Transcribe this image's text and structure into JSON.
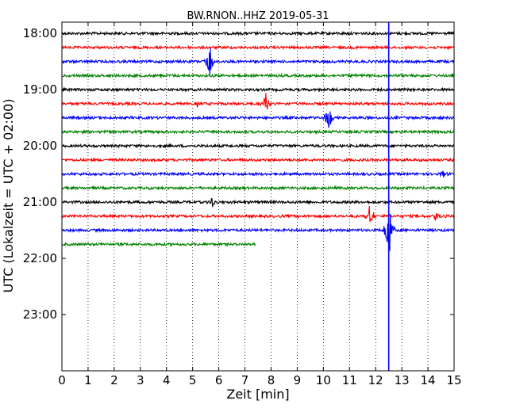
{
  "chart_data": {
    "type": "line",
    "title": "BW.RNON..HHZ 2019-05-31",
    "xlabel": "Zeit  [min]",
    "ylabel": "UTC (Lokalzeit = UTC + 02:00)",
    "xlim": [
      0,
      15
    ],
    "x_ticks": [
      "0",
      "1",
      "2",
      "3",
      "4",
      "5",
      "6",
      "7",
      "8",
      "9",
      "10",
      "11",
      "12",
      "13",
      "14",
      "15"
    ],
    "y_ticks": [
      "18:00",
      "19:00",
      "20:00",
      "21:00",
      "22:00",
      "23:00"
    ],
    "grid": "vertical dotted",
    "trace_interval_min": 15,
    "trace_colors": [
      "#000000",
      "#ff0000",
      "#0000ff",
      "#008000"
    ],
    "traces": [
      {
        "start": "18:00",
        "end_min": 15
      },
      {
        "start": "18:15",
        "end_min": 15
      },
      {
        "start": "18:30",
        "end_min": 15
      },
      {
        "start": "18:45",
        "end_min": 15
      },
      {
        "start": "19:00",
        "end_min": 15
      },
      {
        "start": "19:15",
        "end_min": 15
      },
      {
        "start": "19:30",
        "end_min": 15
      },
      {
        "start": "19:45",
        "end_min": 15
      },
      {
        "start": "20:00",
        "end_min": 15
      },
      {
        "start": "20:15",
        "end_min": 15
      },
      {
        "start": "20:30",
        "end_min": 15
      },
      {
        "start": "20:45",
        "end_min": 15
      },
      {
        "start": "21:00",
        "end_min": 15
      },
      {
        "start": "21:15",
        "end_min": 15
      },
      {
        "start": "21:30",
        "end_min": 15
      },
      {
        "start": "21:45",
        "end_min": 7.4
      }
    ],
    "events": [
      {
        "trace": "18:30",
        "minute": 5.65,
        "amplitude": 1.6
      },
      {
        "trace": "19:15",
        "minute": 7.8,
        "amplitude": 0.9
      },
      {
        "trace": "19:15",
        "minute": 5.2,
        "amplitude": 0.3
      },
      {
        "trace": "19:30",
        "minute": 10.2,
        "amplitude": 1.4
      },
      {
        "trace": "21:00",
        "minute": 5.75,
        "amplitude": 0.45
      },
      {
        "trace": "21:15",
        "minute": 11.8,
        "amplitude": 1.3
      },
      {
        "trace": "21:15",
        "minute": 14.3,
        "amplitude": 0.5
      },
      {
        "trace": "21:30",
        "minute": 12.5,
        "amplitude": 3.5
      },
      {
        "trace": "20:30",
        "minute": 14.6,
        "amplitude": 0.35
      }
    ],
    "marker_line": {
      "minute": 12.5,
      "color": "#0000ff"
    }
  }
}
